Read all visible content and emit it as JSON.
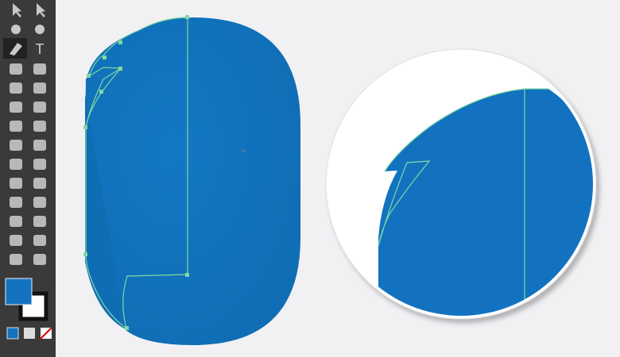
{
  "toolbar": {
    "type_tool": "T"
  }
}
